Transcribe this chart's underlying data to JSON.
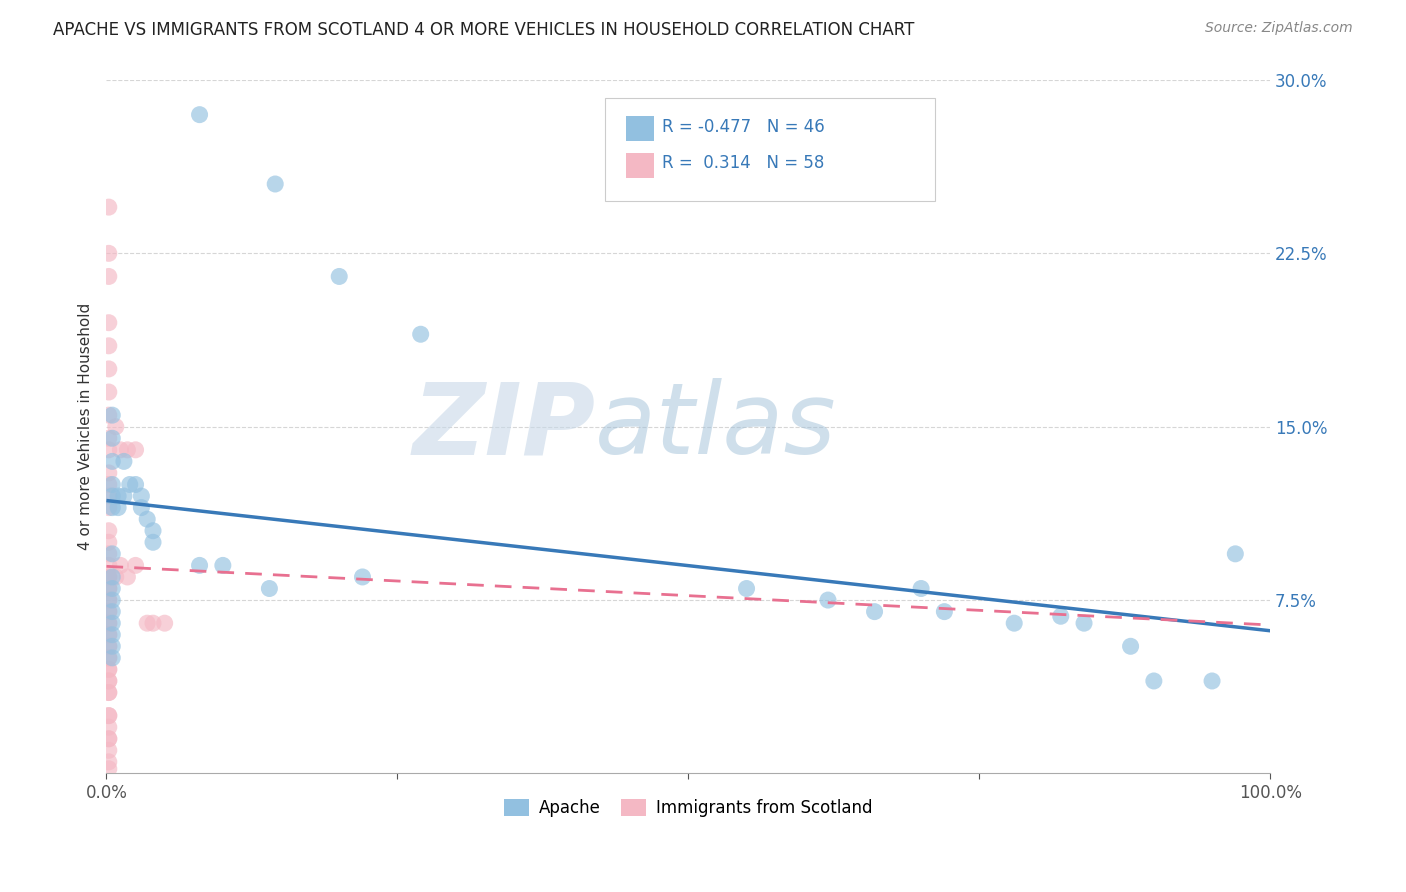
{
  "title": "APACHE VS IMMIGRANTS FROM SCOTLAND 4 OR MORE VEHICLES IN HOUSEHOLD CORRELATION CHART",
  "source": "Source: ZipAtlas.com",
  "ylabel": "4 or more Vehicles in Household",
  "xlim": [
    0,
    1.0
  ],
  "ylim": [
    0,
    0.3
  ],
  "ytick_labels": [
    "7.5%",
    "15.0%",
    "22.5%",
    "30.0%"
  ],
  "ytick_values": [
    0.075,
    0.15,
    0.225,
    0.3
  ],
  "legend_R_apache": "-0.477",
  "legend_N_apache": "46",
  "legend_R_scotland": "0.314",
  "legend_N_scotland": "58",
  "apache_color": "#92c0e0",
  "scotland_color": "#f4b8c4",
  "regression_apache_color": "#3879b8",
  "regression_scotland_color": "#e87090",
  "watermark_zip": "ZIP",
  "watermark_atlas": "atlas",
  "apache_x": [
    0.08,
    0.145,
    0.2,
    0.27,
    0.005,
    0.005,
    0.005,
    0.005,
    0.005,
    0.005,
    0.01,
    0.01,
    0.015,
    0.015,
    0.02,
    0.025,
    0.03,
    0.03,
    0.035,
    0.04,
    0.04,
    0.005,
    0.005,
    0.005,
    0.08,
    0.1,
    0.14,
    0.22,
    0.55,
    0.62,
    0.66,
    0.7,
    0.72,
    0.78,
    0.82,
    0.84,
    0.88,
    0.9,
    0.95,
    0.97,
    0.005,
    0.005,
    0.005,
    0.005,
    0.005,
    0.005
  ],
  "apache_y": [
    0.285,
    0.255,
    0.215,
    0.19,
    0.135,
    0.125,
    0.12,
    0.115,
    0.155,
    0.145,
    0.12,
    0.115,
    0.135,
    0.12,
    0.125,
    0.125,
    0.12,
    0.115,
    0.11,
    0.105,
    0.1,
    0.095,
    0.085,
    0.08,
    0.09,
    0.09,
    0.08,
    0.085,
    0.08,
    0.075,
    0.07,
    0.08,
    0.07,
    0.065,
    0.068,
    0.065,
    0.055,
    0.04,
    0.04,
    0.095,
    0.075,
    0.07,
    0.065,
    0.06,
    0.055,
    0.05
  ],
  "scotland_x": [
    0.002,
    0.002,
    0.002,
    0.002,
    0.002,
    0.002,
    0.002,
    0.002,
    0.002,
    0.002,
    0.002,
    0.002,
    0.002,
    0.002,
    0.002,
    0.002,
    0.002,
    0.002,
    0.002,
    0.002,
    0.002,
    0.002,
    0.002,
    0.002,
    0.002,
    0.002,
    0.002,
    0.002,
    0.002,
    0.002,
    0.008,
    0.008,
    0.012,
    0.012,
    0.018,
    0.018,
    0.025,
    0.025,
    0.035,
    0.04,
    0.05,
    0.002,
    0.002,
    0.002,
    0.002,
    0.002,
    0.002,
    0.002,
    0.002,
    0.002,
    0.002,
    0.002,
    0.002,
    0.002,
    0.002,
    0.002,
    0.002,
    0.002,
    0.002
  ],
  "scotland_y": [
    0.245,
    0.225,
    0.215,
    0.195,
    0.185,
    0.175,
    0.165,
    0.155,
    0.145,
    0.14,
    0.13,
    0.125,
    0.12,
    0.115,
    0.105,
    0.1,
    0.095,
    0.085,
    0.08,
    0.075,
    0.07,
    0.065,
    0.06,
    0.055,
    0.05,
    0.045,
    0.04,
    0.035,
    0.025,
    0.015,
    0.15,
    0.085,
    0.14,
    0.09,
    0.14,
    0.085,
    0.14,
    0.09,
    0.065,
    0.065,
    0.065,
    0.09,
    0.085,
    0.08,
    0.075,
    0.07,
    0.065,
    0.06,
    0.055,
    0.05,
    0.045,
    0.04,
    0.035,
    0.025,
    0.02,
    0.015,
    0.01,
    0.005,
    0.002
  ],
  "background_color": "#ffffff"
}
